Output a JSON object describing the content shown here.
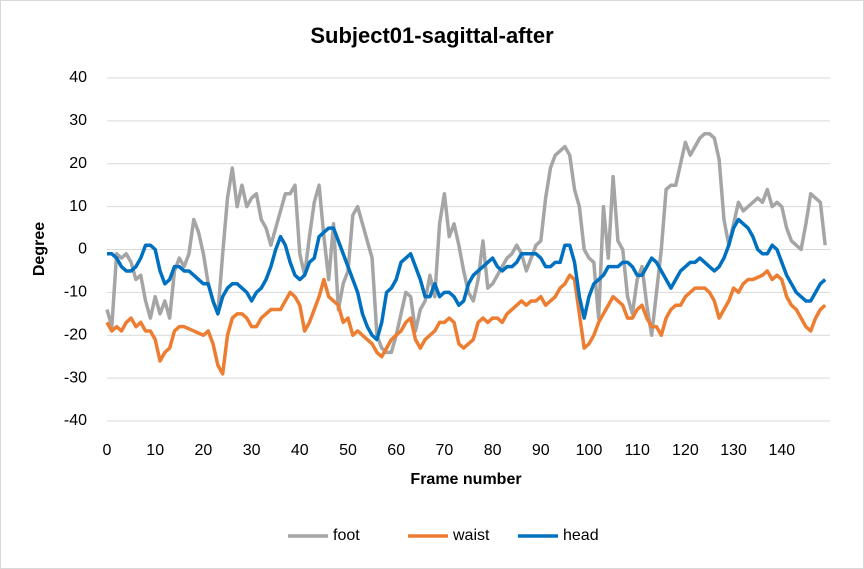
{
  "chart_data": {
    "type": "line",
    "title": "Subject01-sagittal-after",
    "x_label": "Frame number",
    "y_label": "Degree",
    "x": [
      0,
      1,
      2,
      3,
      4,
      5,
      6,
      7,
      8,
      9,
      10,
      11,
      12,
      13,
      14,
      15,
      16,
      17,
      18,
      19,
      20,
      21,
      22,
      23,
      24,
      25,
      26,
      27,
      28,
      29,
      30,
      31,
      32,
      33,
      34,
      35,
      36,
      37,
      38,
      39,
      40,
      41,
      42,
      43,
      44,
      45,
      46,
      47,
      48,
      49,
      50,
      51,
      52,
      53,
      54,
      55,
      56,
      57,
      58,
      59,
      60,
      61,
      62,
      63,
      64,
      65,
      66,
      67,
      68,
      69,
      70,
      71,
      72,
      73,
      74,
      75,
      76,
      77,
      78,
      79,
      80,
      81,
      82,
      83,
      84,
      85,
      86,
      87,
      88,
      89,
      90,
      91,
      92,
      93,
      94,
      95,
      96,
      97,
      98,
      99,
      100,
      101,
      102,
      103,
      104,
      105,
      106,
      107,
      108,
      109,
      110,
      111,
      112,
      113,
      114,
      115,
      116,
      117,
      118,
      119,
      120,
      121,
      122,
      123,
      124,
      125,
      126,
      127,
      128,
      129,
      130,
      131,
      132,
      133,
      134,
      135,
      136,
      137,
      138,
      139,
      140,
      141,
      142,
      143,
      144,
      145,
      146,
      147,
      148,
      149
    ],
    "series": [
      {
        "name": "foot",
        "color": "#a5a5a5",
        "values": [
          -14,
          -18,
          -1,
          -2,
          -1,
          -3,
          -7,
          -6,
          -12,
          -16,
          -11,
          -15,
          -12,
          -16,
          -5,
          -2,
          -4,
          -1,
          7,
          4,
          -1,
          -8,
          -12,
          -15,
          -1,
          12,
          19,
          10,
          15,
          10,
          12,
          13,
          7,
          5,
          1,
          5,
          9,
          13,
          13,
          15,
          -1,
          -6,
          3,
          11,
          15,
          3,
          -7,
          6,
          -14,
          -8,
          -5,
          8,
          10,
          6,
          2,
          -2,
          -20,
          -23,
          -24,
          -24,
          -20,
          -15,
          -10,
          -11,
          -19,
          -14,
          -12,
          -6,
          -11,
          6,
          13,
          3,
          6,
          1,
          -5,
          -10,
          -12,
          -7,
          2,
          -9,
          -8,
          -6,
          -4,
          -2,
          -1,
          1,
          -1,
          -5,
          -2,
          1,
          2,
          12,
          19,
          22,
          23,
          24,
          22,
          14,
          10,
          0,
          -2,
          -3,
          -16,
          10,
          -2,
          17,
          2,
          0,
          -11,
          -15,
          -7,
          -4,
          -13,
          -20,
          -10,
          0,
          14,
          15,
          15,
          20,
          25,
          22,
          24,
          26,
          27,
          27,
          26,
          21,
          7,
          1,
          6,
          11,
          9,
          10,
          11,
          12,
          11,
          14,
          10,
          11,
          10,
          5,
          2,
          1,
          0,
          6,
          13,
          12,
          11,
          1
        ]
      },
      {
        "name": "waist",
        "color": "#ed7d31",
        "values": [
          -17,
          -19,
          -18,
          -19,
          -17,
          -16,
          -18,
          -17,
          -19,
          -19,
          -21,
          -26,
          -24,
          -23,
          -19,
          -18,
          -18,
          -18.5,
          -19,
          -19.5,
          -20,
          -19,
          -22,
          -27,
          -29,
          -20,
          -16,
          -15,
          -15,
          -16,
          -18,
          -18,
          -16,
          -15,
          -14,
          -14,
          -14,
          -12,
          -10,
          -11,
          -13,
          -19,
          -17,
          -14,
          -11,
          -7,
          -11,
          -12,
          -13,
          -17,
          -16,
          -20,
          -19,
          -20,
          -21,
          -22,
          -24,
          -25,
          -23,
          -21,
          -20,
          -19,
          -17,
          -16,
          -21,
          -23,
          -21,
          -20,
          -19,
          -17,
          -17,
          -16,
          -17,
          -22,
          -23,
          -22,
          -21,
          -17,
          -16,
          -17,
          -16,
          -16,
          -17,
          -15,
          -14,
          -13,
          -12,
          -13,
          -12,
          -12,
          -11,
          -13,
          -12,
          -11,
          -9,
          -8,
          -6,
          -7,
          -15,
          -23,
          -22,
          -20,
          -17,
          -15,
          -13,
          -11,
          -12,
          -13,
          -16,
          -16,
          -14,
          -13,
          -16,
          -18,
          -18,
          -20,
          -16,
          -14,
          -13,
          -13,
          -11,
          -10,
          -9,
          -9,
          -9,
          -10,
          -12,
          -16,
          -14,
          -12,
          -9,
          -10,
          -8,
          -7,
          -7,
          -6.5,
          -6,
          -5,
          -7,
          -6,
          -7,
          -11,
          -13,
          -14,
          -16,
          -18,
          -19,
          -16,
          -14,
          -13
        ]
      },
      {
        "name": "head",
        "color": "#0070c0",
        "values": [
          -1,
          -1,
          -2,
          -4,
          -5,
          -5,
          -4,
          -2,
          1,
          1,
          0,
          -5,
          -8,
          -7,
          -4,
          -4,
          -5,
          -5,
          -6,
          -7,
          -8,
          -8,
          -12,
          -15,
          -11,
          -9,
          -8,
          -8,
          -9,
          -10,
          -12,
          -10,
          -9,
          -7,
          -4,
          0,
          3,
          1,
          -3,
          -6,
          -7,
          -6,
          -3,
          -2,
          3,
          4,
          5,
          5,
          2,
          -1,
          -4,
          -7,
          -10,
          -15,
          -18,
          -20,
          -21,
          -17,
          -10,
          -9,
          -7,
          -3,
          -2,
          -1,
          -4,
          -7,
          -11,
          -11,
          -8,
          -11,
          -10,
          -10,
          -11,
          -13,
          -12,
          -8,
          -6,
          -5,
          -4,
          -3,
          -2,
          -4,
          -5,
          -4,
          -4,
          -3,
          -1,
          -1,
          -1,
          -1,
          -2,
          -4,
          -4,
          -3,
          -3,
          1,
          1,
          -3,
          -11,
          -16,
          -11,
          -8,
          -7,
          -6,
          -4,
          -4,
          -4,
          -3,
          -3,
          -4,
          -6,
          -6,
          -4,
          -2,
          -3,
          -5,
          -7,
          -9,
          -7,
          -5,
          -4,
          -3,
          -3,
          -2,
          -3,
          -4,
          -5,
          -4,
          -2,
          1,
          5,
          7,
          6,
          5,
          3,
          0,
          -1,
          -1,
          1,
          0,
          -3,
          -6,
          -8,
          -10,
          -11,
          -12,
          -12,
          -10,
          -8,
          -7
        ]
      }
    ],
    "xlim": [
      0,
      150
    ],
    "xticks": [
      0,
      10,
      20,
      30,
      40,
      50,
      60,
      70,
      80,
      90,
      100,
      110,
      120,
      130,
      140
    ],
    "ylim": [
      -40,
      40
    ],
    "yticks": [
      -40,
      -30,
      -20,
      -10,
      0,
      10,
      20,
      30,
      40
    ],
    "grid": true,
    "legend": "bottom"
  }
}
